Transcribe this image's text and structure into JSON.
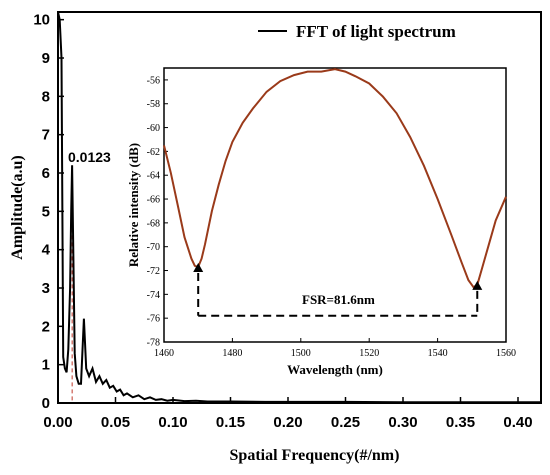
{
  "chart_data": [
    {
      "type": "line",
      "role": "main",
      "xlabel": "Spatial Frequency(#/nm)",
      "ylabel": "Amplitude(a.u)",
      "xlim": [
        0,
        0.42
      ],
      "ylim": [
        0,
        10.2
      ],
      "x_ticks": [
        "0.00",
        "0.05",
        "0.10",
        "0.15",
        "0.20",
        "0.25",
        "0.30",
        "0.35",
        "0.40"
      ],
      "y_ticks": [
        "0",
        "1",
        "2",
        "3",
        "4",
        "5",
        "6",
        "7",
        "8",
        "9",
        "10"
      ],
      "legend": {
        "label": "FFT of light spectrum",
        "position": "top-right"
      },
      "annotation": {
        "label": "0.0123",
        "x": 0.0123,
        "y": 6.2
      },
      "series": [
        {
          "name": "FFT of light spectrum",
          "color": "#000000",
          "x": [
            0.0,
            0.0015,
            0.003,
            0.0045,
            0.006,
            0.0075,
            0.009,
            0.0105,
            0.0115,
            0.0123,
            0.013,
            0.0145,
            0.016,
            0.018,
            0.02,
            0.0225,
            0.0245,
            0.027,
            0.03,
            0.033,
            0.036,
            0.039,
            0.042,
            0.045,
            0.048,
            0.051,
            0.054,
            0.057,
            0.06,
            0.065,
            0.07,
            0.075,
            0.08,
            0.085,
            0.09,
            0.095,
            0.1,
            0.11,
            0.12,
            0.13,
            0.15,
            0.18,
            0.2,
            0.25,
            0.3,
            0.35,
            0.4,
            0.42
          ],
          "y": [
            10.2,
            10.0,
            9.0,
            1.2,
            0.9,
            0.8,
            1.4,
            3.0,
            5.0,
            6.2,
            4.5,
            1.3,
            0.7,
            0.5,
            0.5,
            2.2,
            0.9,
            0.7,
            0.9,
            0.55,
            0.7,
            0.5,
            0.6,
            0.4,
            0.45,
            0.3,
            0.35,
            0.2,
            0.25,
            0.15,
            0.2,
            0.1,
            0.15,
            0.08,
            0.1,
            0.06,
            0.08,
            0.05,
            0.06,
            0.04,
            0.04,
            0.03,
            0.03,
            0.03,
            0.02,
            0.02,
            0.02,
            0.02
          ]
        }
      ]
    },
    {
      "type": "line",
      "role": "inset",
      "xlabel": "Wavelength (nm)",
      "ylabel": "Relative intensity (dB)",
      "xlim": [
        1460,
        1560
      ],
      "ylim": [
        -78,
        -55
      ],
      "x_ticks": [
        "1460",
        "1480",
        "1500",
        "1520",
        "1540",
        "1560"
      ],
      "y_ticks": [
        "-56",
        "-58",
        "-60",
        "-62",
        "-64",
        "-66",
        "-68",
        "-70",
        "-72",
        "-74",
        "-76",
        "-78"
      ],
      "annotation": {
        "label": "FSR=81.6nm",
        "markers_x": [
          1470,
          1551.6
        ]
      },
      "series": [
        {
          "color": "#9a3a1a",
          "x": [
            1460,
            1462,
            1464,
            1466,
            1468,
            1469,
            1470,
            1471,
            1472,
            1474,
            1476,
            1478,
            1480,
            1483,
            1486,
            1490,
            1494,
            1498,
            1502,
            1506,
            1510,
            1513,
            1516,
            1520,
            1524,
            1528,
            1532,
            1536,
            1540,
            1544,
            1547,
            1549,
            1550.5,
            1551.6,
            1553,
            1555,
            1557,
            1560
          ],
          "y": [
            -61.5,
            -63.8,
            -66.5,
            -69.2,
            -71.0,
            -71.6,
            -71.7,
            -71.0,
            -69.8,
            -67.0,
            -64.8,
            -62.8,
            -61.2,
            -59.6,
            -58.4,
            -57.0,
            -56.1,
            -55.6,
            -55.3,
            -55.3,
            -55.1,
            -55.3,
            -55.7,
            -56.3,
            -57.4,
            -58.8,
            -60.8,
            -63.2,
            -66.0,
            -69.0,
            -71.3,
            -72.8,
            -73.4,
            -73.2,
            -71.8,
            -69.8,
            -67.8,
            -65.8
          ]
        }
      ]
    }
  ]
}
